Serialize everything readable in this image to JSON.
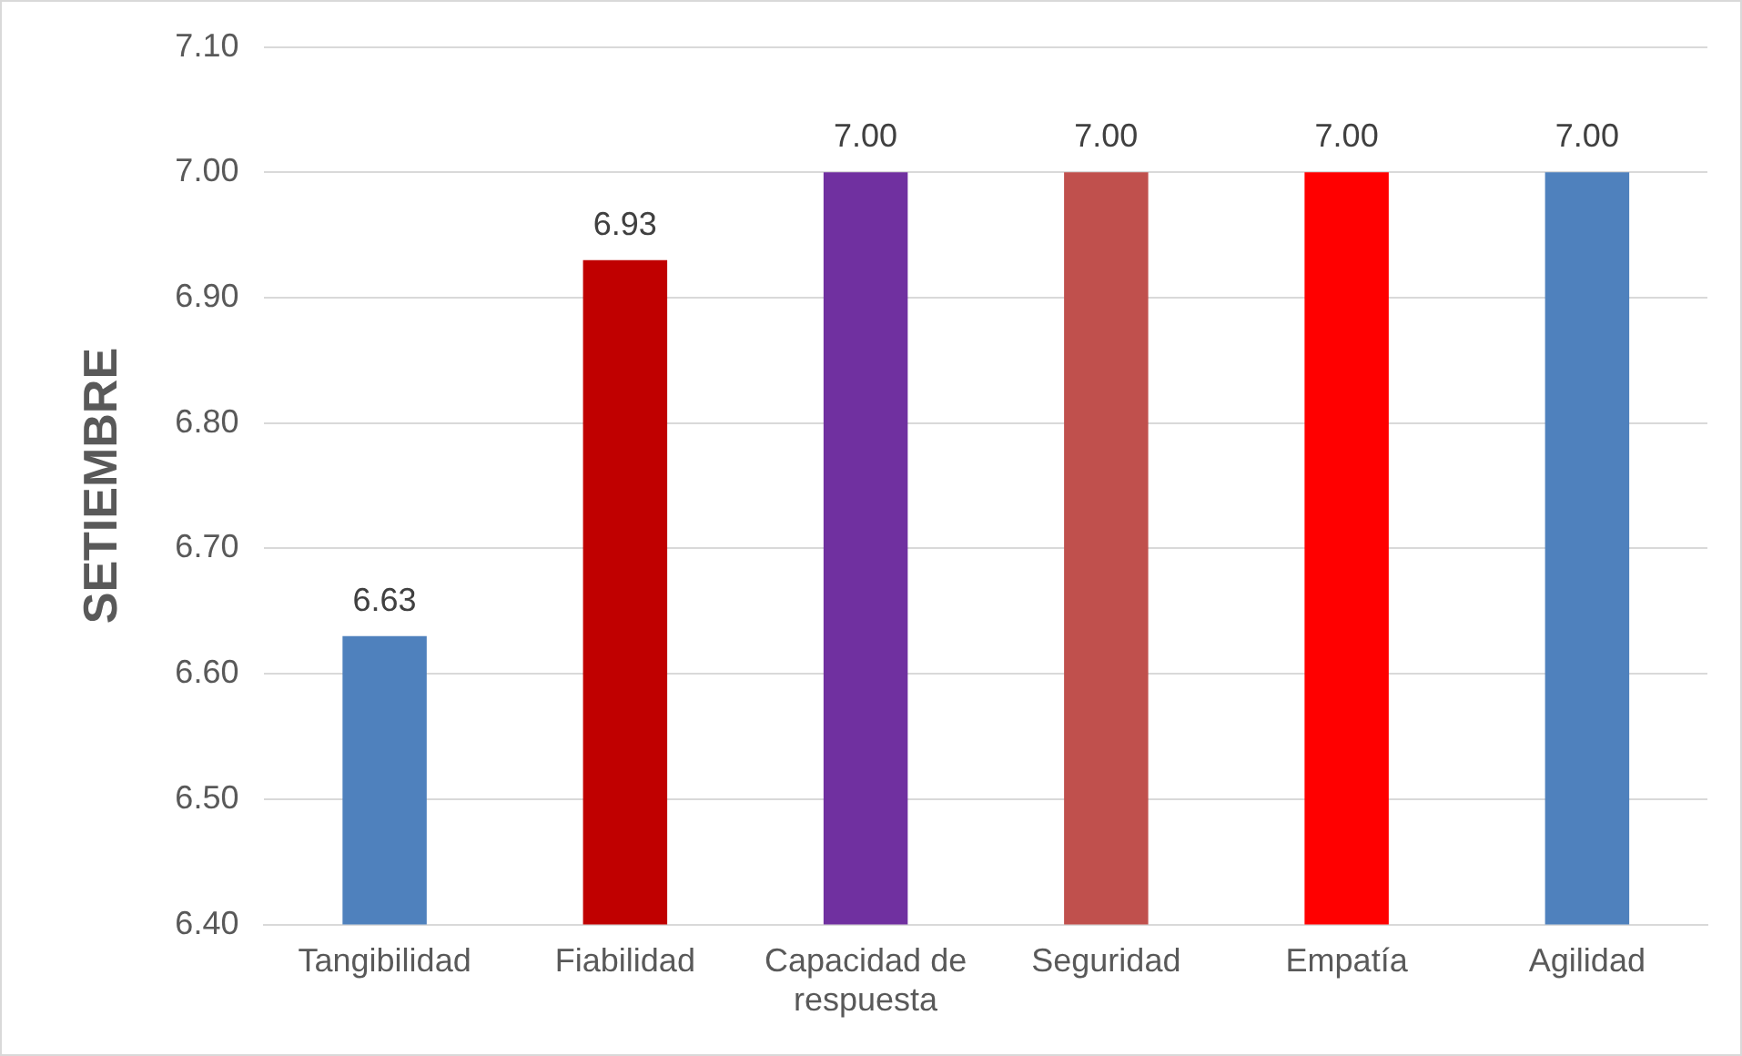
{
  "chart_data": {
    "type": "bar",
    "ylabel": "SETIEMBRE",
    "categories": [
      "Tangibilidad",
      "Fiabilidad",
      "Capacidad de respuesta",
      "Seguridad",
      "Empatía",
      "Agilidad"
    ],
    "values": [
      6.63,
      6.93,
      7,
      7,
      7,
      7
    ],
    "colors": [
      "#4f81bd",
      "#c00000",
      "#7030a0",
      "#c0504d",
      "#ff0000",
      "#4f81bd"
    ],
    "value_labels": [
      "6.63",
      "6.93",
      "7.00",
      "7.00",
      "7.00",
      "7.00"
    ],
    "ylim": [
      6.4,
      7.1
    ],
    "yticks": [
      {
        "value": 6.4,
        "label": "6.40"
      },
      {
        "value": 6.5,
        "label": "6.50"
      },
      {
        "value": 6.6,
        "label": "6.60"
      },
      {
        "value": 6.7,
        "label": "6.70"
      },
      {
        "value": 6.8,
        "label": "6.80"
      },
      {
        "value": 6.9,
        "label": "6.90"
      },
      {
        "value": 7,
        "label": "7.00"
      },
      {
        "value": 7.1,
        "label": "7.10"
      }
    ],
    "grid": "y",
    "legend": false
  }
}
